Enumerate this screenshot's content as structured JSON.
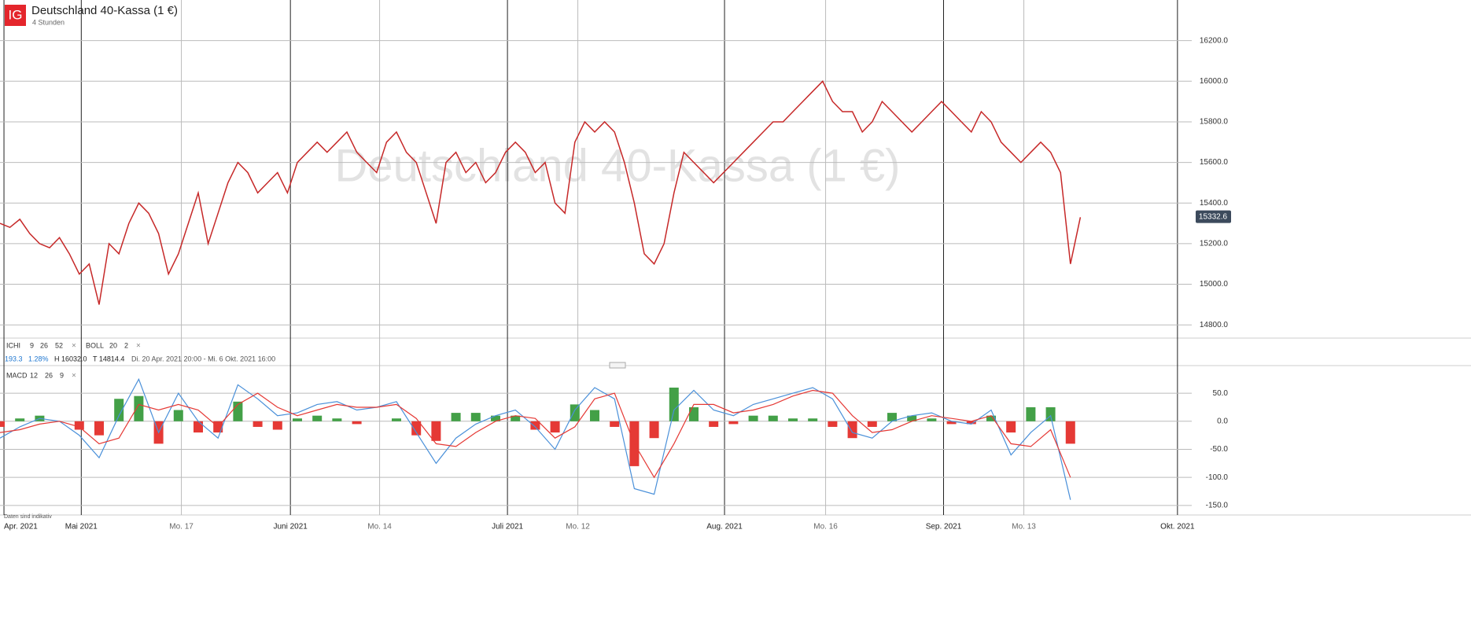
{
  "chart_data": [
    {
      "type": "line",
      "logo": "IG",
      "title": "Deutschland 40-Kassa (1 €)",
      "subtitle": "4 Stunden",
      "indicators": [
        {
          "name": "ICHI",
          "params": [
            9,
            26,
            52
          ]
        },
        {
          "name": "BOLL",
          "params": [
            20,
            2
          ]
        }
      ],
      "info": {
        "change": "193.3",
        "change_pct": "1.28%",
        "high": "H 16032.0",
        "low": "T 14814.4",
        "range": "Di. 20 Apr. 2021 20:00 - Mi. 6 Okt. 2021 16:00"
      },
      "last_value": 15332.6,
      "last_value_label": "15332.6",
      "ylim": [
        14735,
        16400
      ],
      "yticks": [
        {
          "value": 14800,
          "label": "14800.0"
        },
        {
          "value": 15000,
          "label": "15000.0"
        },
        {
          "value": 15200,
          "label": "15200.0"
        },
        {
          "value": 15400,
          "label": "15400.0"
        },
        {
          "value": 15600,
          "label": "15600.0"
        },
        {
          "value": 15800,
          "label": "15800.0"
        },
        {
          "value": 16000,
          "label": "16000.0"
        },
        {
          "value": 16200,
          "label": "16200.0"
        }
      ],
      "series": [
        {
          "color": "#c62828",
          "x": [
            0,
            1,
            2,
            3,
            4,
            5,
            6,
            7,
            8,
            9,
            10,
            11,
            12,
            13,
            14,
            15,
            16,
            17,
            18,
            19,
            20,
            21,
            22,
            23,
            24,
            25,
            26,
            27,
            28,
            29,
            30,
            31,
            32,
            33,
            34,
            35,
            36,
            37,
            38,
            39,
            40,
            41,
            42,
            43,
            44,
            45,
            46,
            47,
            48,
            49,
            50,
            51,
            52,
            53,
            54,
            55,
            56,
            57,
            58,
            59,
            60,
            61,
            62,
            63,
            64,
            65,
            66,
            67,
            68,
            69,
            70,
            71,
            72,
            73,
            74,
            75,
            76,
            77,
            78,
            79,
            80,
            81,
            82,
            83,
            84,
            85,
            86,
            87,
            88,
            89,
            90,
            91,
            92,
            93,
            94,
            95,
            96,
            97,
            98,
            99,
            100,
            101,
            102,
            103,
            104,
            105,
            106,
            107,
            108,
            109
          ],
          "values": [
            15300,
            15280,
            15320,
            15250,
            15200,
            15180,
            15230,
            15150,
            15050,
            15100,
            14900,
            15200,
            15150,
            15300,
            15400,
            15350,
            15250,
            15050,
            15150,
            15300,
            15450,
            15200,
            15350,
            15500,
            15600,
            15550,
            15450,
            15500,
            15550,
            15450,
            15600,
            15650,
            15700,
            15650,
            15700,
            15750,
            15650,
            15600,
            15550,
            15700,
            15750,
            15650,
            15600,
            15450,
            15300,
            15600,
            15650,
            15550,
            15600,
            15500,
            15550,
            15650,
            15700,
            15650,
            15550,
            15600,
            15400,
            15350,
            15700,
            15800,
            15750,
            15800,
            15750,
            15600,
            15400,
            15150,
            15100,
            15200,
            15450,
            15650,
            15600,
            15550,
            15500,
            15550,
            15600,
            15650,
            15700,
            15750,
            15800,
            15800,
            15850,
            15900,
            15950,
            16000,
            15900,
            15850,
            15850,
            15750,
            15800,
            15900,
            15850,
            15800,
            15750,
            15800,
            15850,
            15900,
            15850,
            15800,
            15750,
            15850,
            15800,
            15700,
            15650,
            15600,
            15650,
            15700,
            15650,
            15550,
            15100,
            15330
          ]
        }
      ],
      "note": "Daten sind indikativ"
    },
    {
      "type": "macd",
      "indicator": {
        "name": "MACD",
        "params": [
          12,
          26,
          9
        ]
      },
      "xlim": [
        0,
        120.24
      ],
      "xticks": [
        {
          "value": 0.4,
          "label": "Apr. 2021"
        },
        {
          "value": 8.2,
          "label": "Mai 2021"
        },
        {
          "value": 29.3,
          "label": "Juni 2021"
        },
        {
          "value": 51.2,
          "label": "Juli 2021"
        },
        {
          "value": 73.1,
          "label": "Aug. 2021"
        },
        {
          "value": 95.2,
          "label": "Sep. 2021"
        },
        {
          "value": 118.8,
          "label": "Okt. 2021"
        }
      ],
      "xticks_minor": [
        {
          "value": 18.3,
          "label": "Mo. 17"
        },
        {
          "value": 38.3,
          "label": "Mo. 14"
        },
        {
          "value": 58.3,
          "label": "Mo. 12"
        },
        {
          "value": 83.3,
          "label": "Mo. 16"
        },
        {
          "value": 103.3,
          "label": "Mo. 13"
        }
      ],
      "ylim": [
        -167,
        95
      ],
      "yticks": [
        {
          "value": -150,
          "label": "-150.0"
        },
        {
          "value": -100,
          "label": "-100.0"
        },
        {
          "value": -50,
          "label": "-50.0"
        },
        {
          "value": 0,
          "label": "0.0"
        },
        {
          "value": 50,
          "label": "50.0"
        }
      ],
      "x": [
        0,
        2,
        4,
        6,
        8,
        10,
        12,
        14,
        16,
        18,
        20,
        22,
        24,
        26,
        28,
        30,
        32,
        34,
        36,
        38,
        40,
        42,
        44,
        46,
        48,
        50,
        52,
        54,
        56,
        58,
        60,
        62,
        64,
        66,
        68,
        70,
        72,
        74,
        76,
        78,
        80,
        82,
        84,
        86,
        88,
        90,
        92,
        94,
        96,
        98,
        100,
        102,
        104,
        106,
        108
      ],
      "series": [
        {
          "color": "#4a90d9",
          "values": [
            -30,
            -10,
            5,
            0,
            -25,
            -65,
            10,
            75,
            -20,
            50,
            0,
            -30,
            65,
            40,
            10,
            15,
            30,
            35,
            20,
            25,
            35,
            -20,
            -75,
            -30,
            -5,
            10,
            20,
            -10,
            -50,
            20,
            60,
            40,
            -120,
            -130,
            20,
            55,
            20,
            10,
            30,
            40,
            50,
            60,
            40,
            -20,
            -30,
            0,
            10,
            15,
            0,
            -5,
            20,
            -60,
            -20,
            10,
            -140
          ]
        },
        {
          "color": "#e53935",
          "values": [
            -20,
            -15,
            -5,
            0,
            -10,
            -40,
            -30,
            30,
            20,
            30,
            20,
            -10,
            30,
            50,
            25,
            10,
            20,
            30,
            25,
            25,
            30,
            5,
            -40,
            -45,
            -20,
            0,
            10,
            5,
            -30,
            -10,
            40,
            50,
            -40,
            -100,
            -40,
            30,
            30,
            15,
            20,
            30,
            45,
            55,
            50,
            10,
            -20,
            -15,
            0,
            10,
            5,
            0,
            10,
            -40,
            -45,
            -15,
            -100
          ]
        }
      ],
      "histogram": {
        "colors": [
          "#43a047",
          "#e53935"
        ],
        "values": [
          -10,
          5,
          10,
          0,
          -15,
          -25,
          40,
          45,
          -40,
          20,
          -20,
          -20,
          35,
          -10,
          -15,
          5,
          10,
          5,
          -5,
          0,
          5,
          -25,
          -35,
          15,
          15,
          10,
          10,
          -15,
          -20,
          30,
          20,
          -10,
          -80,
          -30,
          60,
          25,
          -10,
          -5,
          10,
          10,
          5,
          5,
          -10,
          -30,
          -10,
          15,
          10,
          5,
          -5,
          -5,
          10,
          -20,
          25,
          25,
          -40
        ]
      }
    }
  ]
}
